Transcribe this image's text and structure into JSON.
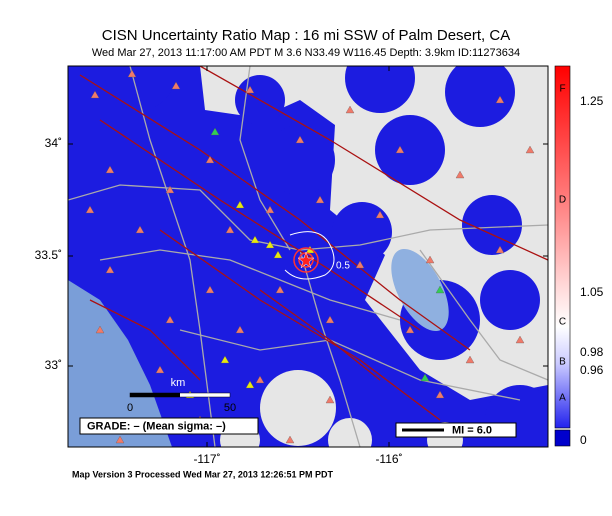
{
  "title": "CISN Uncertainty Ratio Map : 16 mi SSW of Palm Desert, CA",
  "subtitle": "Wed Mar 27, 2013 11:17:00 AM PDT   M 3.6   N33.49 W116.45   Depth: 3.9km   ID:11273634",
  "map": {
    "lat_labels": [
      "34˚",
      "33.5˚",
      "33˚"
    ],
    "lon_labels": [
      "-117˚",
      "-116˚"
    ],
    "contour_label": "0.5",
    "scale_bar": {
      "unit": "km",
      "start": "0",
      "end": "50"
    },
    "grade": "GRADE: – (Mean sigma: –)",
    "legend": "MI = 6.0"
  },
  "colorbar": {
    "grades": [
      "F",
      "D",
      "C",
      "B",
      "A"
    ],
    "labels": [
      "1.25",
      "1.05",
      "0.98",
      "0.96",
      "0"
    ]
  },
  "footer": "Map Version 3 Processed Wed Mar 27, 2013 12:26:51 PM PDT"
}
